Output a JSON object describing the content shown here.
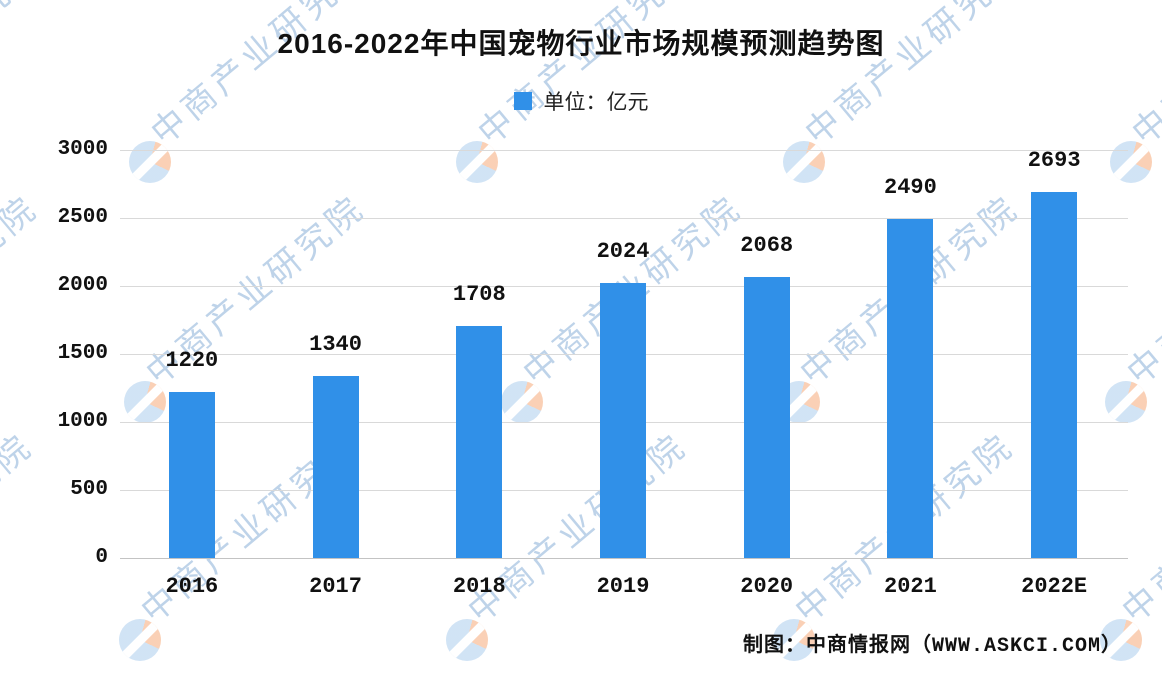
{
  "title": "2016-2022年中国宠物行业市场规模预测趋势图",
  "legend": {
    "label": "单位：亿元",
    "swatch_color": "#3090E8"
  },
  "chart_data": {
    "type": "bar",
    "title": "2016-2022年中国宠物行业市场规模预测趋势图",
    "categories": [
      "2016",
      "2017",
      "2018",
      "2019",
      "2020",
      "2021",
      "2022E"
    ],
    "values": [
      1220,
      1340,
      1708,
      2024,
      2068,
      2490,
      2693
    ],
    "value_labels_shown": true,
    "unit_label": "单位：亿元",
    "xlabel": "",
    "ylabel": "",
    "ylim": [
      0,
      3000
    ],
    "yticks": [
      0,
      500,
      1000,
      1500,
      2000,
      2500,
      3000
    ],
    "grid": true,
    "legend_position": "top-center",
    "bar_color": "#3090E8"
  },
  "watermark": {
    "text": "中商产业研究院",
    "logo_name": "askci-sphere-logo",
    "text_color": "#93b5db",
    "logo_blue": "#b0d0ee",
    "logo_orange": "#f6af82"
  },
  "footer": {
    "credit": "制图：中商情报网（WWW.ASKCI.COM）"
  }
}
